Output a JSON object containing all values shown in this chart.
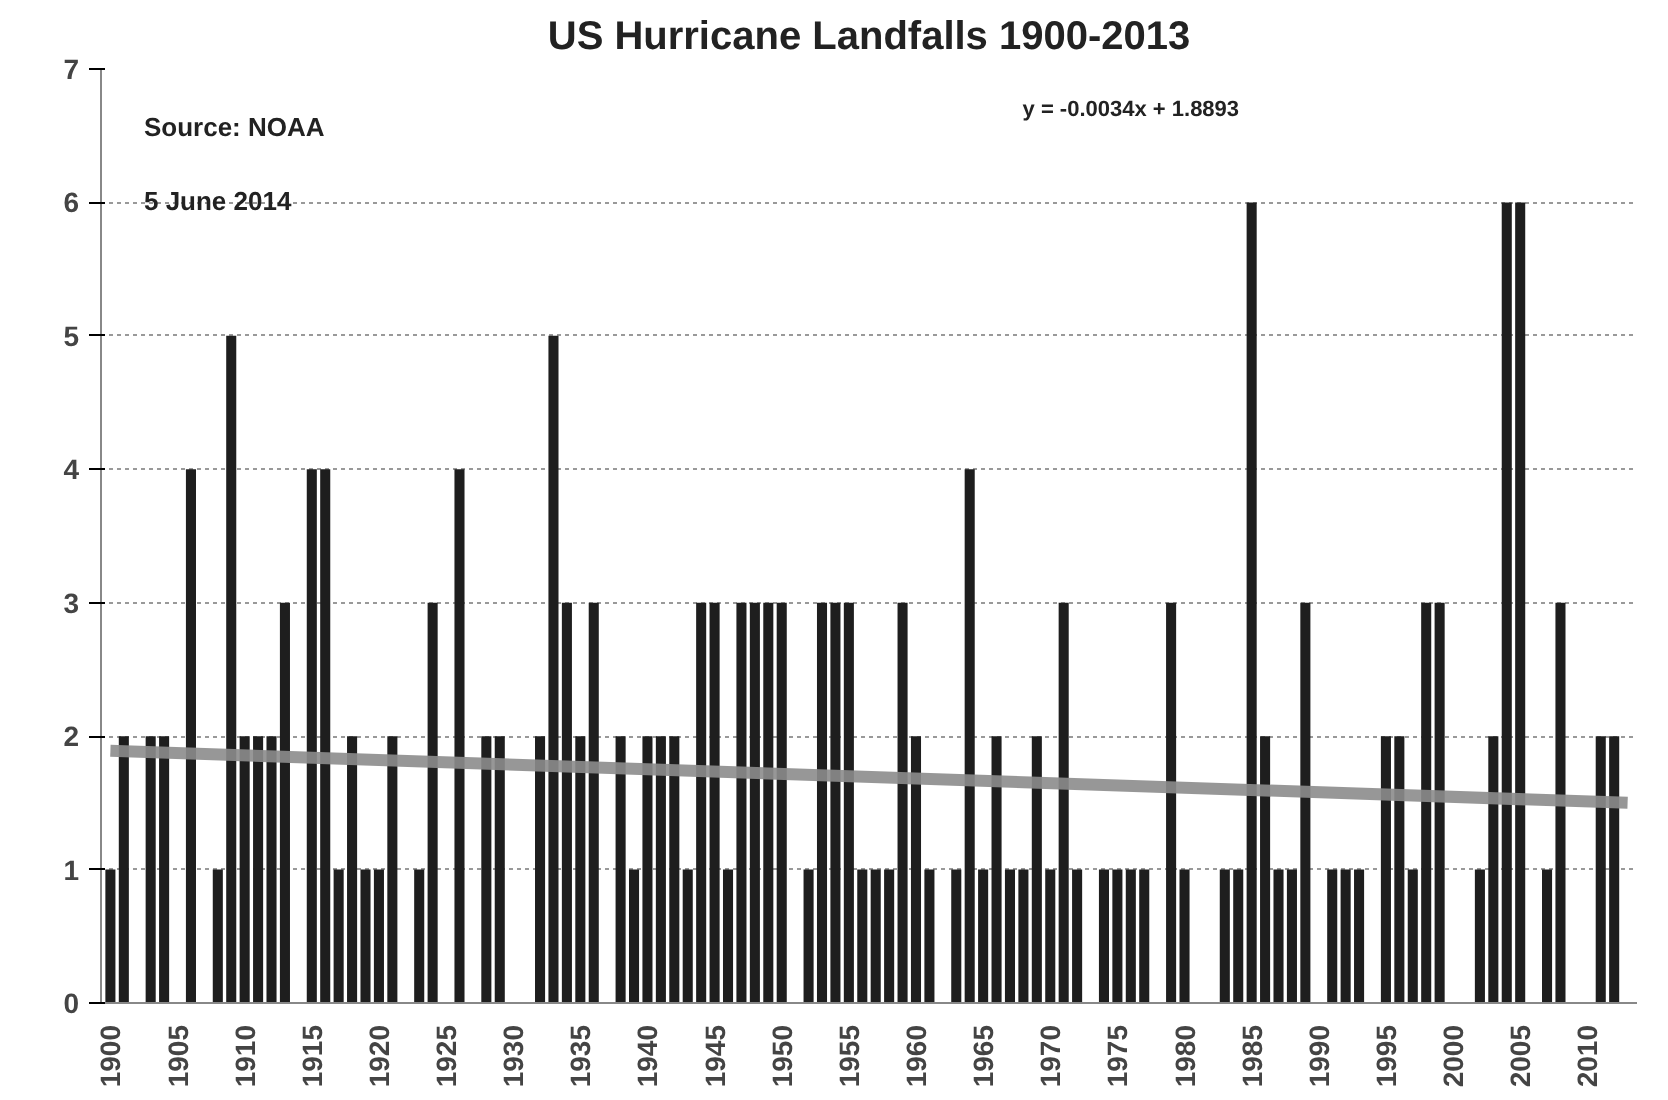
{
  "chart_data": {
    "type": "bar",
    "title": "US Hurricane Landfalls 1900-2013",
    "x": [
      1900,
      1901,
      1902,
      1903,
      1904,
      1905,
      1906,
      1907,
      1908,
      1909,
      1910,
      1911,
      1912,
      1913,
      1914,
      1915,
      1916,
      1917,
      1918,
      1919,
      1920,
      1921,
      1922,
      1923,
      1924,
      1925,
      1926,
      1927,
      1928,
      1929,
      1930,
      1931,
      1932,
      1933,
      1934,
      1935,
      1936,
      1937,
      1938,
      1939,
      1940,
      1941,
      1942,
      1943,
      1944,
      1945,
      1946,
      1947,
      1948,
      1949,
      1950,
      1951,
      1952,
      1953,
      1954,
      1955,
      1956,
      1957,
      1958,
      1959,
      1960,
      1961,
      1962,
      1963,
      1964,
      1965,
      1966,
      1967,
      1968,
      1969,
      1970,
      1971,
      1972,
      1973,
      1974,
      1975,
      1976,
      1977,
      1978,
      1979,
      1980,
      1981,
      1982,
      1983,
      1984,
      1985,
      1986,
      1987,
      1988,
      1989,
      1990,
      1991,
      1992,
      1993,
      1994,
      1995,
      1996,
      1997,
      1998,
      1999,
      2000,
      2001,
      2002,
      2003,
      2004,
      2005,
      2006,
      2007,
      2008,
      2009,
      2010,
      2011,
      2012,
      2013
    ],
    "series": [
      {
        "color": "#1e1e1e",
        "values": [
          1,
          2,
          0,
          2,
          2,
          0,
          4,
          0,
          1,
          5,
          2,
          2,
          2,
          3,
          0,
          4,
          4,
          1,
          2,
          1,
          1,
          2,
          0,
          1,
          3,
          0,
          4,
          0,
          2,
          2,
          0,
          0,
          2,
          5,
          3,
          2,
          3,
          0,
          2,
          1,
          2,
          2,
          2,
          1,
          3,
          3,
          1,
          3,
          3,
          3,
          3,
          0,
          1,
          3,
          3,
          3,
          1,
          1,
          1,
          3,
          2,
          1,
          0,
          1,
          4,
          1,
          2,
          1,
          1,
          2,
          1,
          3,
          1,
          0,
          1,
          1,
          1,
          1,
          0,
          3,
          1,
          0,
          0,
          1,
          1,
          6,
          2,
          1,
          1,
          3,
          0,
          1,
          1,
          1,
          0,
          2,
          2,
          1,
          3,
          3,
          0,
          0,
          1,
          2,
          6,
          6,
          0,
          1,
          3,
          0,
          0,
          2,
          2,
          0
        ]
      },
      {
        "type": "line",
        "color": "#8c8c8c",
        "x": [
          1900,
          2013
        ],
        "values": [
          1.89,
          1.5
        ]
      }
    ],
    "ylim": [
      0,
      7
    ],
    "yticks": [
      0,
      1,
      2,
      3,
      4,
      5,
      6,
      7
    ],
    "xlim": [
      1899.3,
      2013.7
    ],
    "xticks": [
      1900,
      1905,
      1910,
      1915,
      1920,
      1925,
      1930,
      1935,
      1940,
      1945,
      1950,
      1955,
      1960,
      1965,
      1970,
      1975,
      1980,
      1985,
      1990,
      1995,
      2000,
      2005,
      2010
    ],
    "grid": "y",
    "annotations": [
      "Source: NOAA",
      "5 June 2014",
      "y = -0.0034x + 1.8893"
    ]
  }
}
